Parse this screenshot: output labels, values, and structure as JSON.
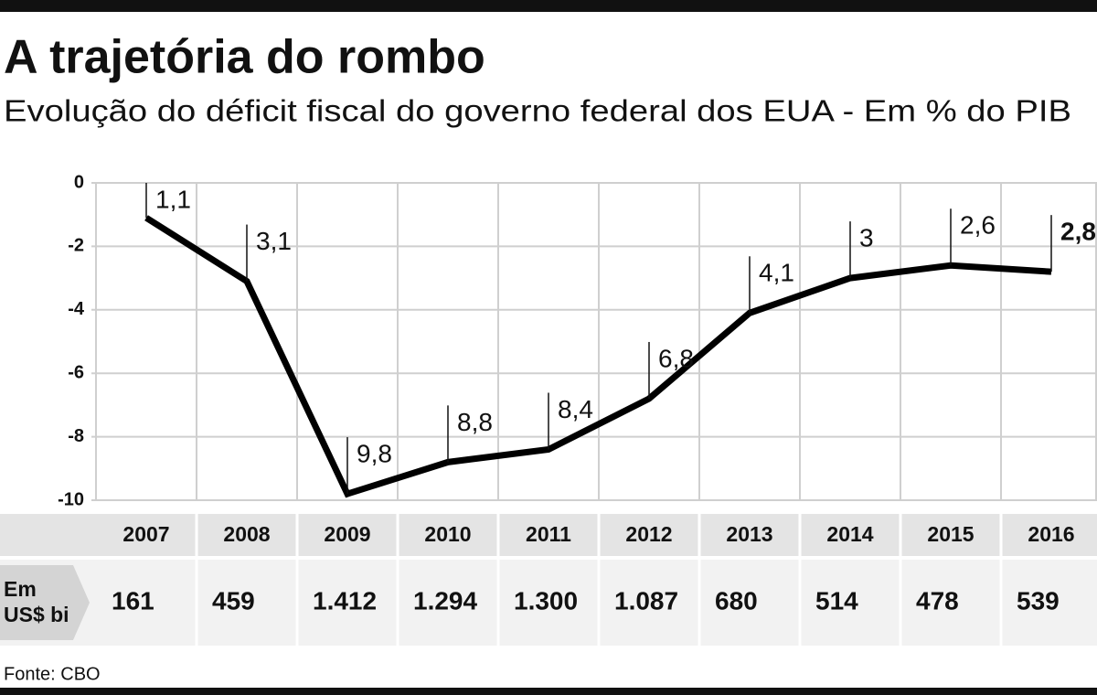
{
  "chart_data": {
    "type": "line",
    "title": "A trajetória do rombo",
    "subtitle": "Evolução do déficit fiscal do governo federal dos EUA - Em % do PIB",
    "categories": [
      "2007",
      "2008",
      "2009",
      "2010",
      "2011",
      "2012",
      "2013",
      "2014",
      "2015",
      "2016"
    ],
    "values": [
      -1.1,
      -3.1,
      -9.8,
      -8.8,
      -8.4,
      -6.8,
      -4.1,
      -3,
      -2.6,
      -2.8
    ],
    "value_labels": [
      "1,1",
      "3,1",
      "9,8",
      "8,8",
      "8,4",
      "6,8",
      "4,1",
      "3",
      "2,6",
      "2,8"
    ],
    "color": "#000000",
    "ylim": [
      -10,
      0
    ],
    "yticks": [
      0,
      -2,
      -4,
      -6,
      -8,
      -10
    ],
    "grid": true,
    "table_row": {
      "label": "Em US$ bi",
      "values": [
        "161",
        "459",
        "1.412",
        "1.294",
        "1.300",
        "1.087",
        "680",
        "514",
        "478",
        "539"
      ]
    },
    "source": "Fonte: CBO"
  }
}
